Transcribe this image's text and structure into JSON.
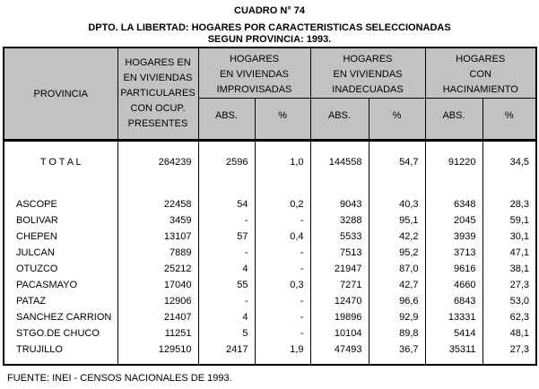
{
  "page": {
    "title": "CUADRO N° 74",
    "subtitle_line1": "DPTO. LA LIBERTAD: HOGARES POR CARACTERISTICAS SELECCIONADAS",
    "subtitle_line2": "SEGUN PROVINCIA: 1993.",
    "footer": "FUENTE: INEI - CENSOS NACIONALES DE 1993."
  },
  "table": {
    "header": {
      "provincia": "PROVINCIA",
      "particulares_lines": [
        "HOGARES EN",
        "EN VIVIENDAS",
        "PARTICULARES",
        "CON OCUP.",
        "PRESENTES"
      ],
      "groups": [
        {
          "lines": [
            "HOGARES",
            "EN VIVIENDAS",
            "IMPROVISADAS"
          ]
        },
        {
          "lines": [
            "HOGARES",
            "EN VIVIENDAS",
            "INADECUADAS"
          ]
        },
        {
          "lines": [
            "HOGARES",
            "CON",
            "HACINAMIENTO"
          ]
        }
      ],
      "sub_abs": "ABS.",
      "sub_pct": "%"
    },
    "total": {
      "name": "T O T A L",
      "part": "264239",
      "iabs": "2596",
      "ipct": "1,0",
      "nabs": "144558",
      "npct": "54,7",
      "habs": "91220",
      "hpct": "34,5"
    },
    "rows": [
      {
        "name": "ASCOPE",
        "part": "22458",
        "iabs": "54",
        "ipct": "0,2",
        "nabs": "9043",
        "npct": "40,3",
        "habs": "6348",
        "hpct": "28,3"
      },
      {
        "name": "BOLIVAR",
        "part": "3459",
        "iabs": "-",
        "ipct": "-",
        "nabs": "3288",
        "npct": "95,1",
        "habs": "2045",
        "hpct": "59,1"
      },
      {
        "name": "CHEPEN",
        "part": "13107",
        "iabs": "57",
        "ipct": "0,4",
        "nabs": "5533",
        "npct": "42,2",
        "habs": "3939",
        "hpct": "30,1"
      },
      {
        "name": "JULCAN",
        "part": "7889",
        "iabs": "-",
        "ipct": "-",
        "nabs": "7513",
        "npct": "95,2",
        "habs": "3713",
        "hpct": "47,1"
      },
      {
        "name": "OTUZCO",
        "part": "25212",
        "iabs": "4",
        "ipct": "-",
        "nabs": "21947",
        "npct": "87,0",
        "habs": "9616",
        "hpct": "38,1"
      },
      {
        "name": "PACASMAYO",
        "part": "17040",
        "iabs": "55",
        "ipct": "0,3",
        "nabs": "7271",
        "npct": "42,7",
        "habs": "4660",
        "hpct": "27,3"
      },
      {
        "name": "PATAZ",
        "part": "12906",
        "iabs": "-",
        "ipct": "-",
        "nabs": "12470",
        "npct": "96,6",
        "habs": "6843",
        "hpct": "53,0"
      },
      {
        "name": "SANCHEZ CARRION",
        "part": "21407",
        "iabs": "4",
        "ipct": "-",
        "nabs": "19896",
        "npct": "92,9",
        "habs": "13331",
        "hpct": "62,3"
      },
      {
        "name": "STGO.DE CHUCO",
        "part": "11251",
        "iabs": "5",
        "ipct": "-",
        "nabs": "10104",
        "npct": "89,8",
        "habs": "5414",
        "hpct": "48,1"
      },
      {
        "name": "TRUJILLO",
        "part": "129510",
        "iabs": "2417",
        "ipct": "1,9",
        "nabs": "47493",
        "npct": "36,7",
        "habs": "35311",
        "hpct": "27,3"
      }
    ]
  }
}
